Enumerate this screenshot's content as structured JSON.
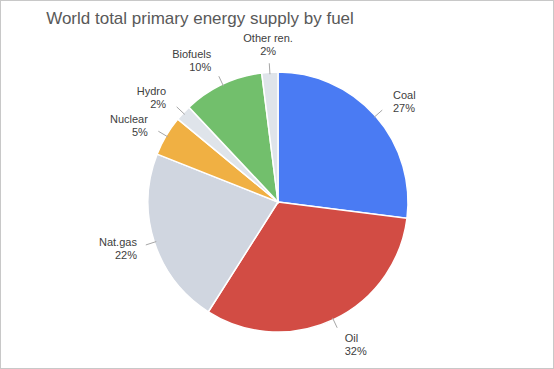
{
  "chart_data": {
    "type": "pie",
    "title": "World total primary energy supply by fuel",
    "categories": [
      "Coal",
      "Oil",
      "Nat.gas",
      "Nuclear",
      "Hydro",
      "Biofuels",
      "Other ren."
    ],
    "values": [
      27,
      32,
      22,
      5,
      2,
      10,
      2
    ],
    "value_labels": [
      "27%",
      "32%",
      "22%",
      "5%",
      "2%",
      "10%",
      "2%"
    ],
    "colors": [
      "#4a7bf3",
      "#d24c44",
      "#d0d6e0",
      "#f0b043",
      "#dfe4ea",
      "#72bf6c",
      "#dfe4ea"
    ],
    "data_labels": true
  }
}
